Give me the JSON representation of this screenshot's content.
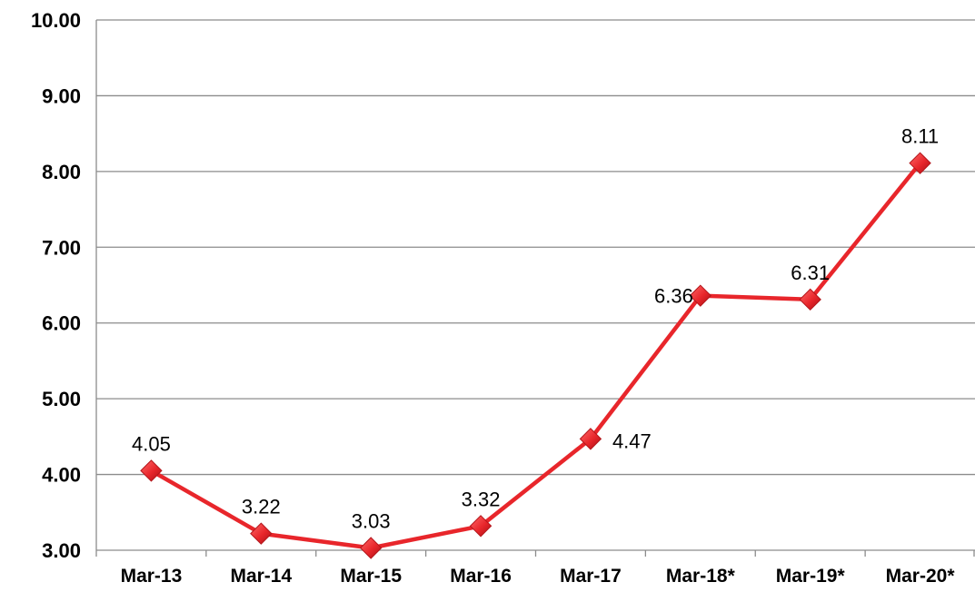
{
  "chart_data": {
    "type": "line",
    "title": "",
    "xlabel": "",
    "ylabel": "",
    "categories": [
      "Mar-13",
      "Mar-14",
      "Mar-15",
      "Mar-16",
      "Mar-17",
      "Mar-18*",
      "Mar-19*",
      "Mar-20*"
    ],
    "series": [
      {
        "values": [
          4.05,
          3.22,
          3.03,
          3.32,
          4.47,
          6.36,
          6.31,
          8.11
        ],
        "data_labels": [
          "4.05",
          "3.22",
          "3.03",
          "3.32",
          "4.47",
          "6.36",
          "6.31",
          "8.11"
        ],
        "color": "#e8262b",
        "marker": "diamond"
      }
    ],
    "ylim": [
      3,
      10
    ],
    "yticks": [
      3,
      4,
      5,
      6,
      7,
      8,
      9,
      10
    ],
    "ytick_labels": [
      "3.00",
      "4.00",
      "5.00",
      "6.00",
      "7.00",
      "8.00",
      "9.00",
      "10.00"
    ],
    "grid": true,
    "legend": "none"
  }
}
